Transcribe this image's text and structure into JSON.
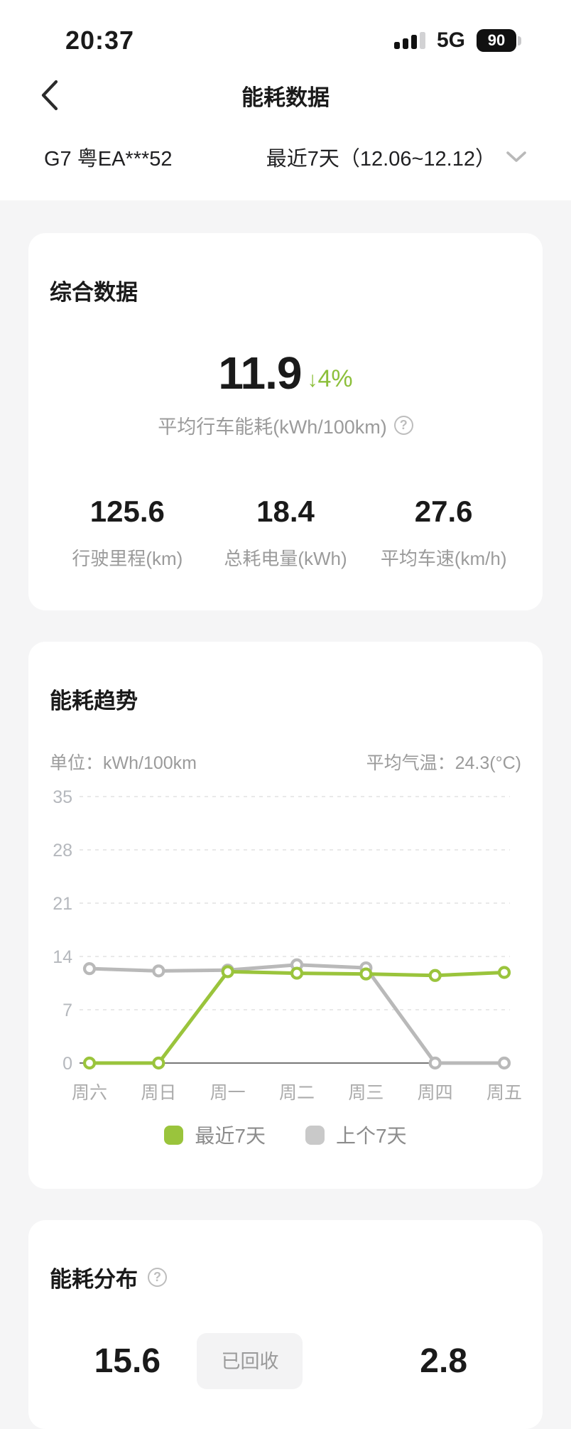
{
  "status_bar": {
    "time": "20:37",
    "network": "5G",
    "battery_percent": "90"
  },
  "header": {
    "title": "能耗数据"
  },
  "selector": {
    "vehicle": "G7 粤EA***52",
    "period": "最近7天（12.06~12.12）"
  },
  "overview": {
    "title": "综合数据",
    "hero": {
      "value": "11.9",
      "arrow": "↓",
      "delta": "4%",
      "label": "平均行车能耗(kWh/100km)"
    },
    "stats": [
      {
        "value": "125.6",
        "label": "行驶里程(km)"
      },
      {
        "value": "18.4",
        "label": "总耗电量(kWh)"
      },
      {
        "value": "27.6",
        "label": "平均车速(km/h)"
      }
    ]
  },
  "trend": {
    "title": "能耗趋势",
    "unit": "单位：kWh/100km",
    "temperature": "平均气温：24.3(°C)"
  },
  "chart_data": {
    "type": "line",
    "title": "能耗趋势",
    "unit": "kWh/100km",
    "categories": [
      "周六",
      "周日",
      "周一",
      "周二",
      "周三",
      "周四",
      "周五"
    ],
    "series": [
      {
        "name": "最近7天",
        "color": "#9ac43c",
        "values": [
          0,
          0,
          12.0,
          11.8,
          11.7,
          11.5,
          11.9
        ]
      },
      {
        "name": "上个7天",
        "color": "#b9b9b9",
        "values": [
          12.4,
          12.1,
          12.2,
          12.9,
          12.5,
          0,
          0
        ]
      }
    ],
    "yticks": [
      0,
      7,
      14,
      21,
      28,
      35
    ],
    "ylim": [
      0,
      35
    ],
    "grid": "horizontal-dashed, solid zero baseline",
    "legend_position": "bottom",
    "avg_temperature": "24.3(°C)"
  },
  "distribution": {
    "title": "能耗分布",
    "value_left": "15.6",
    "badge": "已回收",
    "value_right": "2.8"
  }
}
